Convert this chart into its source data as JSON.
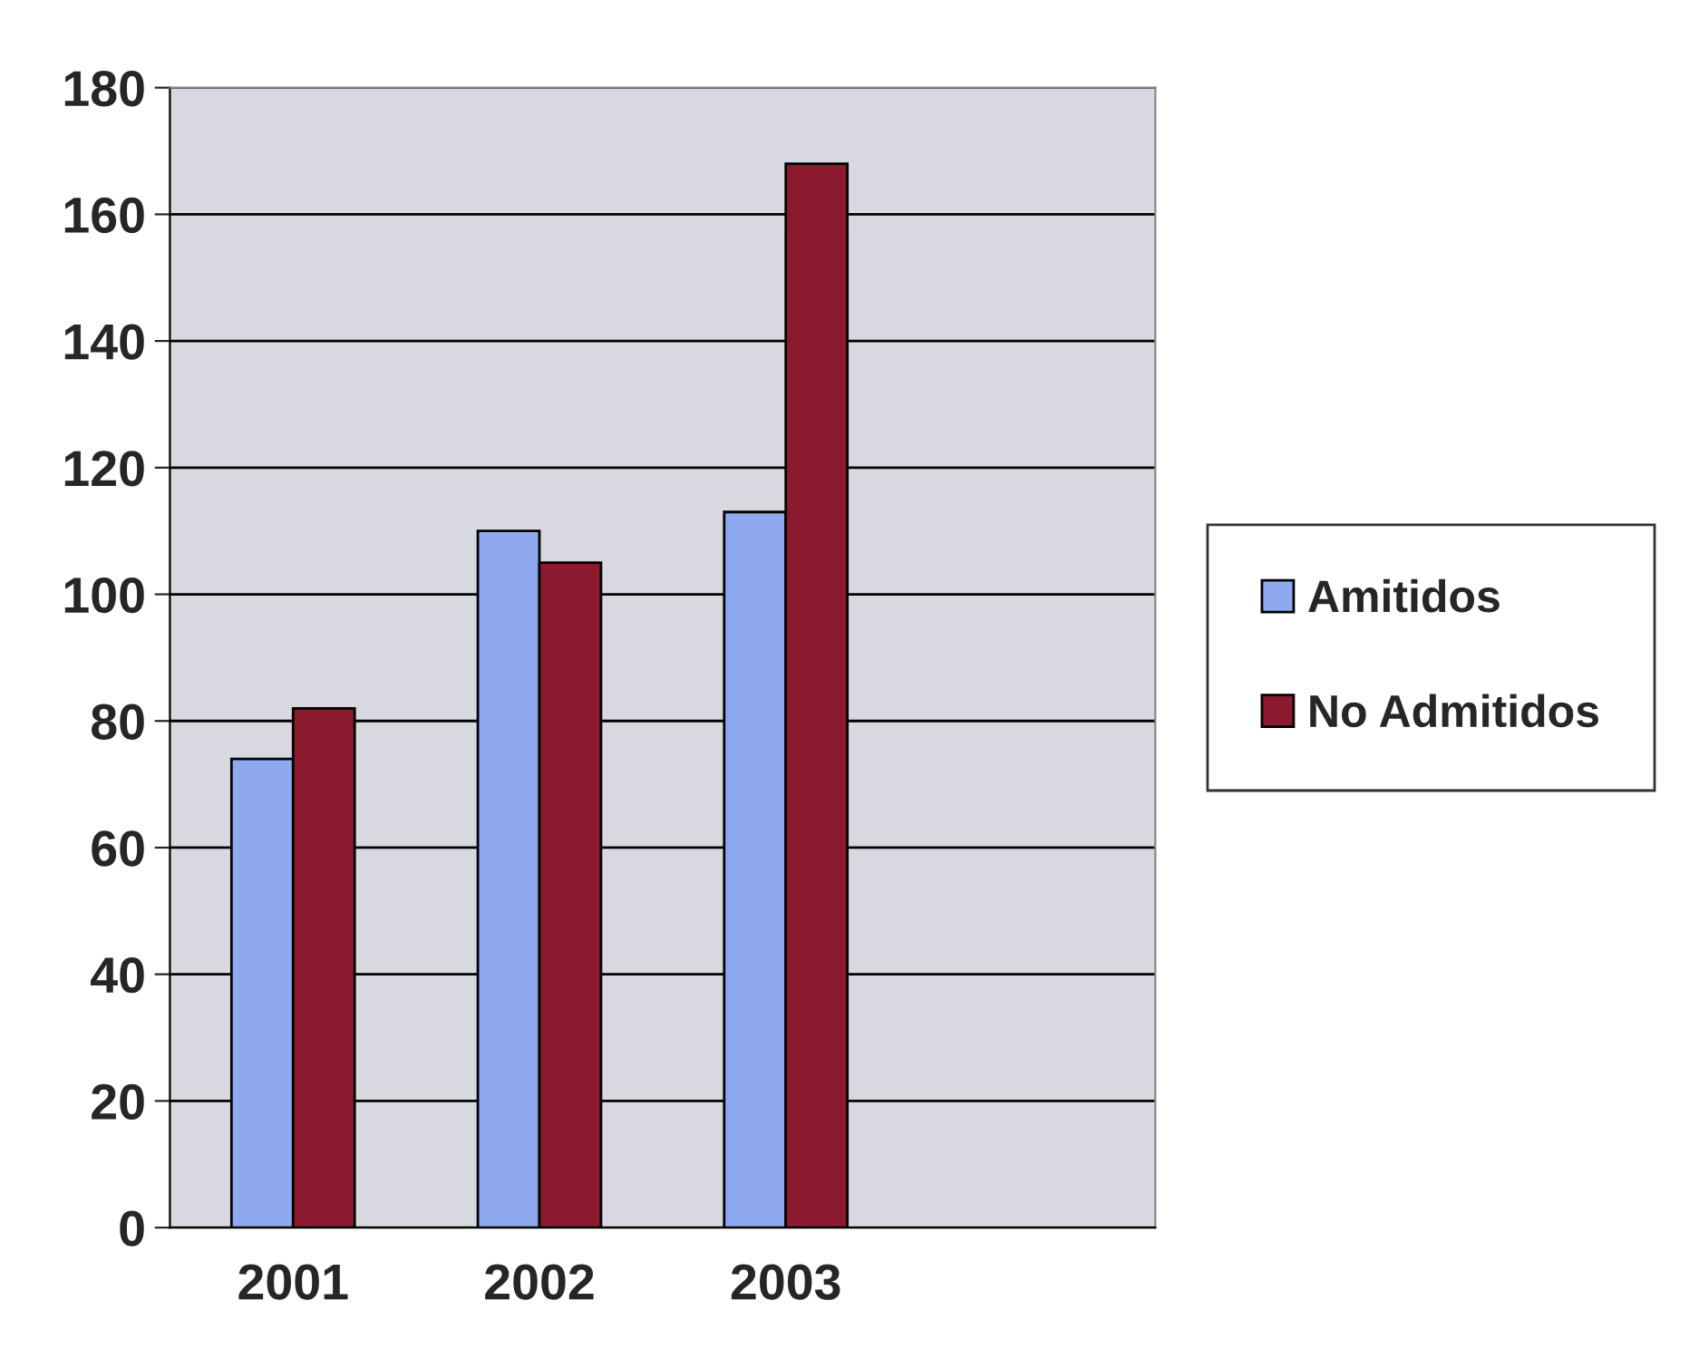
{
  "chart_data": {
    "type": "bar",
    "categories": [
      "2001",
      "2002",
      "2003",
      null
    ],
    "series": [
      {
        "name": "Amitidos",
        "color": "#8ea9f0",
        "values": [
          74,
          110,
          113,
          null
        ]
      },
      {
        "name": "No Admitidos",
        "color": "#8b1a2e",
        "values": [
          82,
          105,
          168,
          null
        ]
      }
    ],
    "ylim": [
      0,
      180
    ],
    "yticks": [
      0,
      20,
      40,
      60,
      80,
      100,
      120,
      140,
      160,
      180
    ],
    "grid": "y",
    "legend": "right"
  }
}
